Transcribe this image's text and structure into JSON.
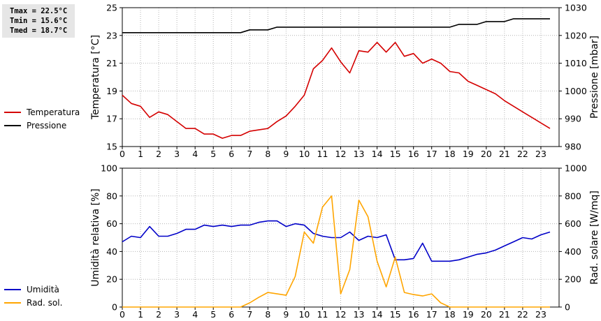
{
  "stats": {
    "tmax": "Tmax = 22.5°C",
    "tmin": "Tmin = 15.6°C",
    "tmed": "Tmed = 18.7°C"
  },
  "colors": {
    "temperatura": "#d40000",
    "pressione": "#000000",
    "umidita": "#0000c8",
    "rad_sol": "#ffa500",
    "grid": "#b4b4b4"
  },
  "chart_data": [
    {
      "type": "line",
      "legend": [
        "Temperatura",
        "Pressione"
      ],
      "xlim": [
        0,
        24
      ],
      "x_ticks": [
        "0",
        "1",
        "2",
        "3",
        "4",
        "5",
        "6",
        "7",
        "8",
        "9",
        "10",
        "11",
        "12",
        "13",
        "14",
        "15",
        "16",
        "17",
        "18",
        "19",
        "20",
        "21",
        "22",
        "23"
      ],
      "ylabel_left": "Temperatura [°C]",
      "ylim_left": [
        15,
        25
      ],
      "yticks_left": [
        "15",
        "17",
        "19",
        "21",
        "23",
        "25"
      ],
      "ylabel_right": "Pressione [mbar]",
      "ylim_right": [
        980,
        1030
      ],
      "yticks_right": [
        "980",
        "990",
        "1000",
        "1010",
        "1020",
        "1030"
      ],
      "grid": true,
      "series": [
        {
          "name": "Temperatura",
          "axis": "left",
          "x": [
            0,
            0.5,
            1,
            1.5,
            2,
            2.5,
            3,
            3.5,
            4,
            4.5,
            5,
            5.5,
            6,
            6.5,
            7,
            7.5,
            8,
            8.5,
            9,
            9.5,
            10,
            10.5,
            11,
            11.5,
            12,
            12.5,
            13,
            13.5,
            14,
            14.5,
            15,
            15.5,
            16,
            16.5,
            17,
            17.5,
            18,
            18.5,
            19,
            19.5,
            20,
            20.5,
            21,
            21.5,
            22,
            22.5,
            23,
            23.5
          ],
          "y": [
            18.7,
            18.1,
            17.9,
            17.1,
            17.5,
            17.3,
            16.8,
            16.3,
            16.3,
            15.9,
            15.9,
            15.6,
            15.8,
            15.8,
            16.1,
            16.2,
            16.3,
            16.8,
            17.2,
            17.9,
            18.7,
            20.6,
            21.2,
            22.1,
            21.1,
            20.3,
            21.9,
            21.8,
            22.5,
            21.8,
            22.5,
            21.5,
            21.7,
            21.0,
            21.3,
            21.0,
            20.4,
            20.3,
            19.7,
            19.4,
            19.1,
            18.8,
            18.3,
            17.9,
            17.5,
            17.1,
            16.7,
            16.3
          ]
        },
        {
          "name": "Pressione",
          "axis": "right",
          "x": [
            0,
            6.5,
            7,
            8,
            8.5,
            9,
            18,
            18.5,
            19.5,
            20,
            21,
            21.5,
            23.5
          ],
          "y": [
            1021,
            1021,
            1022,
            1022,
            1023,
            1023,
            1023,
            1024,
            1024,
            1025,
            1025,
            1026,
            1026
          ]
        }
      ]
    },
    {
      "type": "line",
      "legend": [
        "Umidità",
        "Rad. sol."
      ],
      "xlim": [
        0,
        24
      ],
      "x_ticks": [
        "0",
        "1",
        "2",
        "3",
        "4",
        "5",
        "6",
        "7",
        "8",
        "9",
        "10",
        "11",
        "12",
        "13",
        "14",
        "15",
        "16",
        "17",
        "18",
        "19",
        "20",
        "21",
        "22",
        "23"
      ],
      "ylabel_left": "Umidità relativa [%]",
      "ylim_left": [
        0,
        100
      ],
      "yticks_left": [
        "0",
        "20",
        "40",
        "60",
        "80",
        "100"
      ],
      "ylabel_right": "Rad. solare [W/mq]",
      "ylim_right": [
        0,
        1000
      ],
      "yticks_right": [
        "0",
        "200",
        "400",
        "600",
        "800",
        "1000"
      ],
      "grid": true,
      "series": [
        {
          "name": "Umidità",
          "axis": "left",
          "x": [
            0,
            0.5,
            1,
            1.5,
            2,
            2.5,
            3,
            3.5,
            4,
            4.5,
            5,
            5.5,
            6,
            6.5,
            7,
            7.5,
            8,
            8.5,
            9,
            9.5,
            10,
            10.5,
            11,
            11.5,
            12,
            12.5,
            13,
            13.5,
            14,
            14.5,
            15,
            15.5,
            16,
            16.5,
            17,
            17.5,
            18,
            18.5,
            19,
            19.5,
            20,
            20.5,
            21,
            21.5,
            22,
            22.5,
            23,
            23.5
          ],
          "y": [
            47,
            51,
            50,
            58,
            51,
            51,
            53,
            56,
            56,
            59,
            58,
            59,
            58,
            59,
            59,
            61,
            62,
            62,
            58,
            60,
            59,
            53,
            51,
            50,
            50,
            54,
            48,
            51,
            50,
            52,
            34,
            34,
            35,
            46,
            33,
            33,
            33,
            34,
            36,
            38,
            39,
            41,
            44,
            47,
            50,
            49,
            52,
            54
          ]
        },
        {
          "name": "Rad. sol.",
          "axis": "right",
          "x": [
            0,
            6.5,
            7,
            7.5,
            8,
            8.5,
            9,
            9.5,
            10,
            10.5,
            11,
            11.5,
            12,
            12.5,
            13,
            13.5,
            14,
            14.5,
            15,
            15.5,
            16,
            16.5,
            17,
            17.5,
            18,
            18.5,
            23.5
          ],
          "y": [
            0,
            0,
            30,
            70,
            105,
            95,
            85,
            220,
            540,
            460,
            720,
            800,
            95,
            270,
            770,
            650,
            330,
            145,
            360,
            105,
            90,
            80,
            95,
            30,
            0,
            0,
            0
          ]
        }
      ]
    }
  ]
}
